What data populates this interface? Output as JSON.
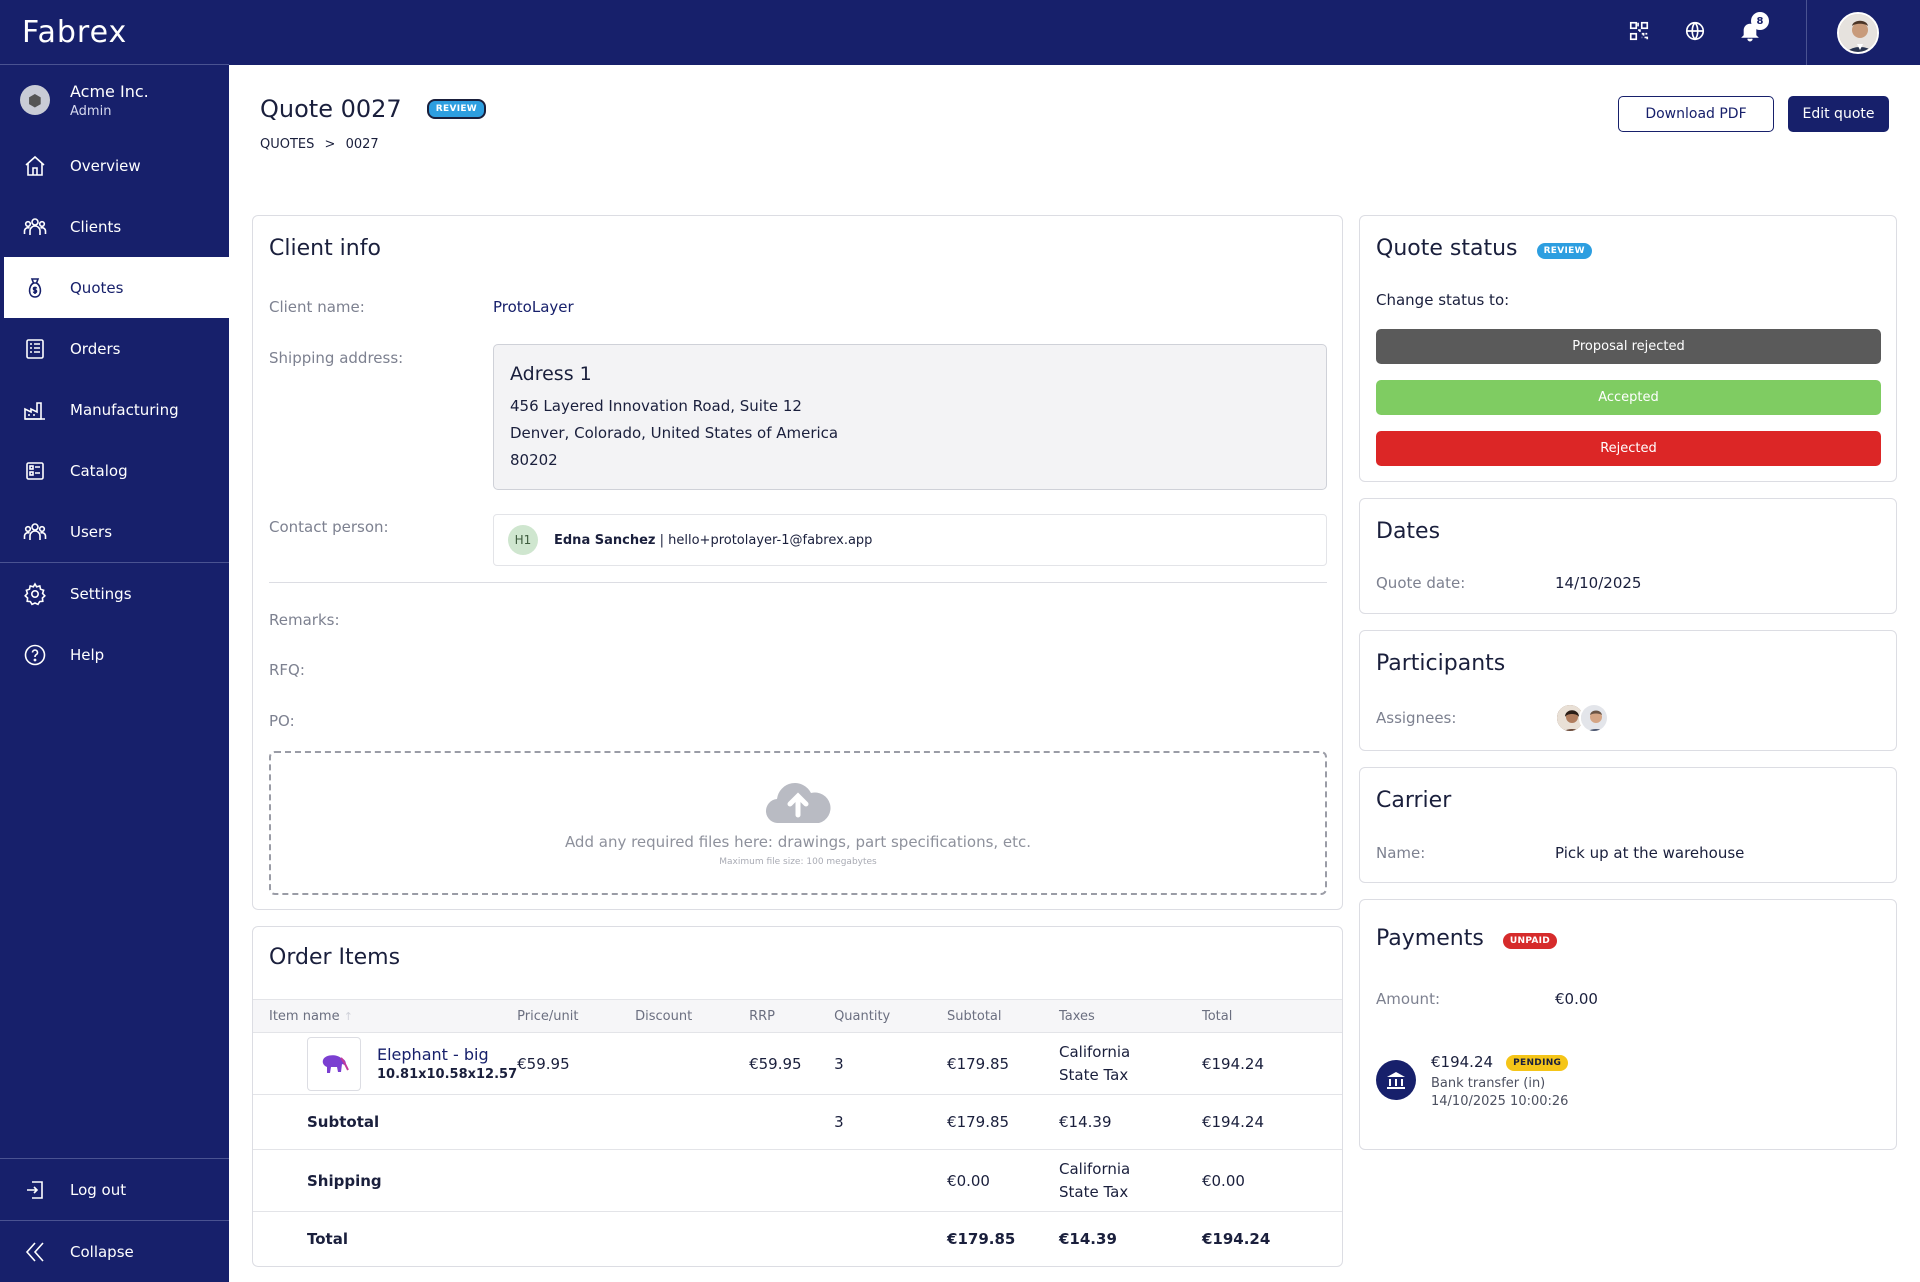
{
  "app": {
    "name": "Fabrex"
  },
  "account": {
    "org": "Acme Inc.",
    "role": "Admin"
  },
  "sidebar": {
    "items": [
      {
        "label": "Overview",
        "icon": "home-icon"
      },
      {
        "label": "Clients",
        "icon": "clients-icon"
      },
      {
        "label": "Quotes",
        "icon": "money-bag-icon",
        "active": true
      },
      {
        "label": "Orders",
        "icon": "orders-icon"
      },
      {
        "label": "Manufacturing",
        "icon": "factory-icon"
      },
      {
        "label": "Catalog",
        "icon": "catalog-icon"
      },
      {
        "label": "Users",
        "icon": "users-icon"
      }
    ],
    "secondary": [
      {
        "label": "Settings",
        "icon": "gear-icon"
      },
      {
        "label": "Help",
        "icon": "help-icon"
      }
    ],
    "logout": "Log out",
    "collapse": "Collapse"
  },
  "topbar": {
    "notifications": "8"
  },
  "header": {
    "title": "Quote 0027",
    "status": "REVIEW",
    "breadcrumb": [
      "QUOTES",
      ">",
      "0027"
    ],
    "download_pdf": "Download PDF",
    "edit_quote": "Edit quote"
  },
  "client_info": {
    "title": "Client info",
    "client_name_label": "Client name:",
    "client_name": "ProtoLayer",
    "shipping_label": "Shipping address:",
    "address": {
      "title": "Adress 1",
      "line1": "456 Layered Innovation Road, Suite 12",
      "line2": "Denver, Colorado, United States of America",
      "line3": "80202"
    },
    "contact_label": "Contact person:",
    "contact": {
      "initials": "H1",
      "name": "Edna Sanchez",
      "separator": " | ",
      "email": "hello+protolayer-1@fabrex.app"
    },
    "remarks_label": "Remarks:",
    "rfq_label": "RFQ:",
    "po_label": "PO:",
    "upload": {
      "text": "Add any required files here: drawings, part specifications, etc.",
      "subtext": "Maximum file size: 100 megabytes"
    }
  },
  "order_items": {
    "title": "Order Items",
    "columns": [
      "Item name",
      "Price/unit",
      "Discount",
      "RRP",
      "Quantity",
      "Subtotal",
      "Taxes",
      "Total"
    ],
    "item": {
      "name": "Elephant - big",
      "dims": "10.81x10.58x12.57",
      "price": "€59.95",
      "discount": "",
      "rrp": "€59.95",
      "quantity": "3",
      "subtotal": "€179.85",
      "taxes_1": "California",
      "taxes_2": "State Tax",
      "total": "€194.24"
    },
    "subtotal_row": {
      "label": "Subtotal",
      "quantity": "3",
      "subtotal": "€179.85",
      "taxes": "€14.39",
      "total": "€194.24"
    },
    "shipping_row": {
      "label": "Shipping",
      "subtotal": "€0.00",
      "taxes_1": "California",
      "taxes_2": "State Tax",
      "total": "€0.00"
    },
    "total_row": {
      "label": "Total",
      "subtotal": "€179.85",
      "taxes": "€14.39",
      "total": "€194.24"
    }
  },
  "quote_status": {
    "title": "Quote status",
    "status": "REVIEW",
    "change_label": "Change status to:",
    "options": [
      {
        "label": "Proposal rejected",
        "color": "#5a5a5a"
      },
      {
        "label": "Accepted",
        "color": "#7fcc62"
      },
      {
        "label": "Rejected",
        "color": "#dc2626"
      }
    ]
  },
  "dates": {
    "title": "Dates",
    "quote_date_label": "Quote date:",
    "quote_date": "14/10/2025"
  },
  "participants": {
    "title": "Participants",
    "assignees_label": "Assignees:"
  },
  "carrier": {
    "title": "Carrier",
    "name_label": "Name:",
    "name": "Pick up at the warehouse"
  },
  "payments": {
    "title": "Payments",
    "status": "UNPAID",
    "amount_label": "Amount:",
    "amount": "€0.00",
    "transaction": {
      "amount": "€194.24",
      "status": "PENDING",
      "method": "Bank transfer (in)",
      "datetime": "14/10/2025 10:00:26"
    }
  }
}
